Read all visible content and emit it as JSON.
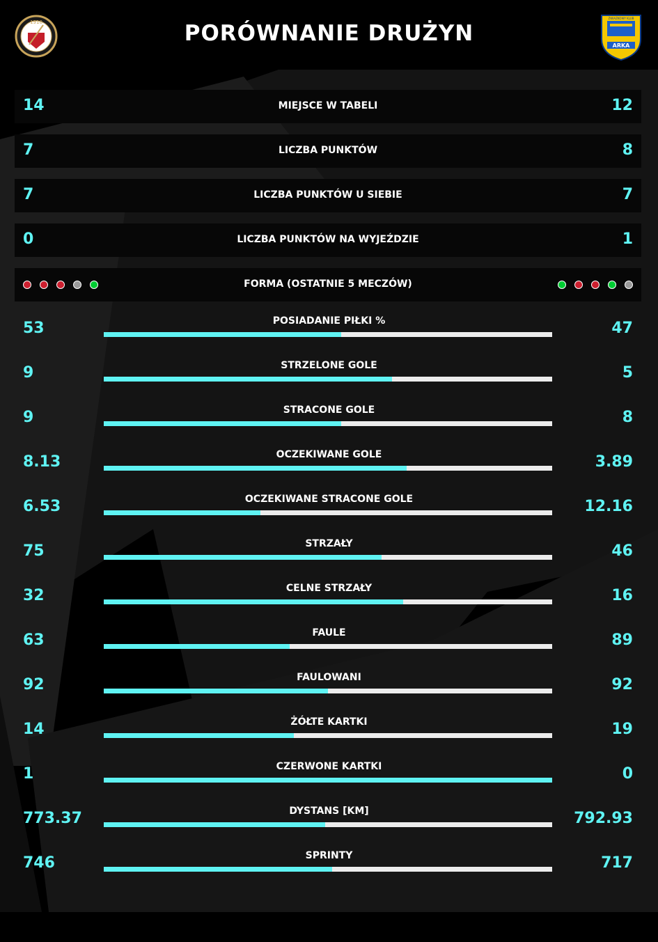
{
  "header": {
    "title": "PORÓWNANIE DRUŻYN",
    "left_logo": {
      "text": "1910",
      "name": "widzew-crest"
    },
    "right_logo": {
      "text": "ARKA",
      "top_text": "ZWIAZKOWY KLUB",
      "name": "arka-crest"
    }
  },
  "colors": {
    "accent": "#5ff3f3",
    "track": "#ececec",
    "win": "#00cc33",
    "loss": "#cc1f2f",
    "draw": "#9a9a9a"
  },
  "rows": [
    {
      "label": "MIEJSCE W TABELI",
      "left": "14",
      "right": "12"
    },
    {
      "label": "LICZBA PUNKTÓW",
      "left": "7",
      "right": "8"
    },
    {
      "label": "LICZBA PUNKTÓW U SIEBIE",
      "left": "7",
      "right": "7"
    },
    {
      "label": "LICZBA PUNKTÓW NA WYJEŹDZIE",
      "left": "0",
      "right": "1"
    }
  ],
  "form": {
    "label": "FORMA (OSTATNIE 5 MECZÓW)",
    "left": [
      "loss",
      "loss",
      "loss",
      "draw",
      "win"
    ],
    "right": [
      "win",
      "loss",
      "loss",
      "win",
      "draw"
    ]
  },
  "stats": [
    {
      "label": "POSIADANIE PIŁKI %",
      "left": "53",
      "right": "47",
      "share": 0.53
    },
    {
      "label": "STRZELONE GOLE",
      "left": "9",
      "right": "5",
      "share": 0.643
    },
    {
      "label": "STRACONE GOLE",
      "left": "9",
      "right": "8",
      "share": 0.529
    },
    {
      "label": "OCZEKIWANE GOLE",
      "left": "8.13",
      "right": "3.89",
      "share": 0.676
    },
    {
      "label": "OCZEKIWANE STRACONE GOLE",
      "left": "6.53",
      "right": "12.16",
      "share": 0.349
    },
    {
      "label": "STRZAŁY",
      "left": "75",
      "right": "46",
      "share": 0.62
    },
    {
      "label": "CELNE STRZAŁY",
      "left": "32",
      "right": "16",
      "share": 0.667
    },
    {
      "label": "FAULE",
      "left": "63",
      "right": "89",
      "share": 0.414
    },
    {
      "label": "FAULOWANI",
      "left": "92",
      "right": "92",
      "share": 0.5
    },
    {
      "label": "ŻÓŁTE KARTKI",
      "left": "14",
      "right": "19",
      "share": 0.424
    },
    {
      "label": "CZERWONE KARTKI",
      "left": "1",
      "right": "0",
      "share": 1.0
    },
    {
      "label": "DYSTANS [KM]",
      "left": "773.37",
      "right": "792.93",
      "share": 0.494
    },
    {
      "label": "SPRINTY",
      "left": "746",
      "right": "717",
      "share": 0.51
    }
  ]
}
